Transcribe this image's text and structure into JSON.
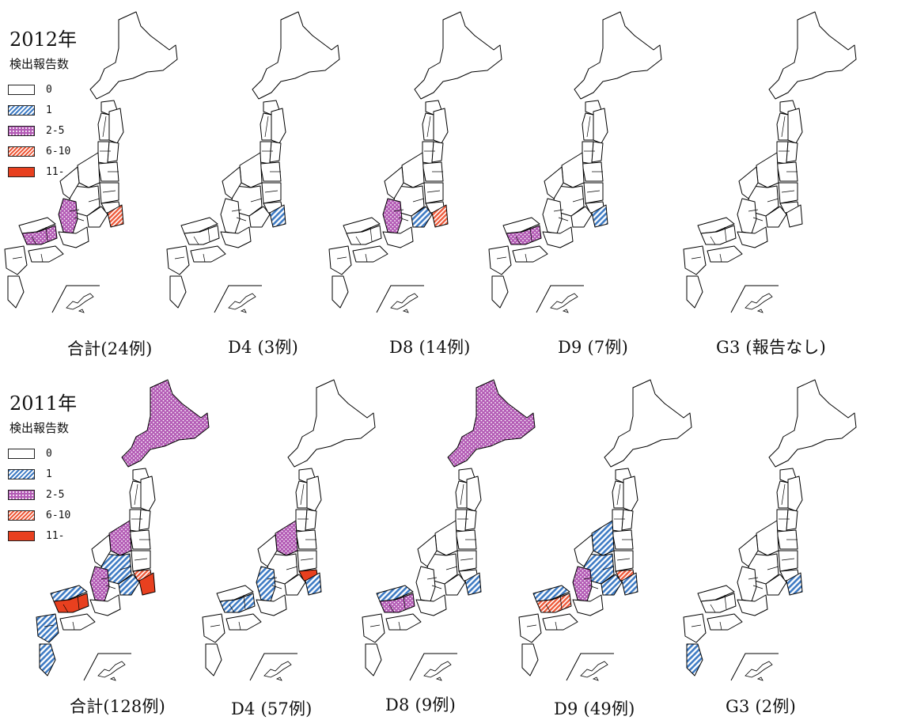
{
  "colors": {
    "c0": "#ffffff",
    "c1": "#3e7bc4",
    "c25": "#b35bb5",
    "c610": "#ee5a3a",
    "c11": "#e8401f",
    "outline": "#000000"
  },
  "legend_categories": [
    {
      "label": "0",
      "level": "c0",
      "pattern": "none"
    },
    {
      "label": "1",
      "level": "c1",
      "pattern": "diag-blue"
    },
    {
      "label": "2-5",
      "level": "c25",
      "pattern": "dots-purple"
    },
    {
      "label": "6-10",
      "level": "c610",
      "pattern": "diag-red"
    },
    {
      "label": "11-",
      "level": "c11",
      "pattern": "solid-red"
    }
  ],
  "rows": [
    {
      "year_label": "2012年",
      "legend_title": "検出報告数",
      "maps": [
        {
          "caption": "合計(24例)",
          "regions": {
            "osaka_area": "c25",
            "hiroshima": "c25",
            "kanagawa": "c610",
            "tokyo": "c0"
          }
        },
        {
          "caption": "D4 (3例)",
          "regions": {
            "kanagawa": "c1"
          }
        },
        {
          "caption": "D8  (14例)",
          "regions": {
            "osaka_area": "c25",
            "aichi": "c1",
            "kanagawa": "c610"
          }
        },
        {
          "caption": "D9 (7例)",
          "regions": {
            "hiroshima": "c25",
            "kanagawa": "c1"
          }
        },
        {
          "caption": "G3 (報告なし)",
          "regions": {}
        }
      ]
    },
    {
      "year_label": "2011年",
      "legend_title": "検出報告数",
      "maps": [
        {
          "caption": "合計(128例)",
          "regions": {
            "hokkaido": "c25",
            "niigata": "c25",
            "gifu_nagano": "c1",
            "aichi": "c1",
            "kanagawa": "c11",
            "tokyo": "c610",
            "osaka_area": "c25",
            "shimane": "c1",
            "hiroshima": "c11",
            "kyushu_north": "c1",
            "kagoshima": "c1"
          }
        },
        {
          "caption": "D4 (57例)",
          "regions": {
            "niigata": "c25",
            "tokyo": "c11",
            "kanagawa": "c1",
            "osaka_area": "c1",
            "hiroshima": "c1"
          }
        },
        {
          "caption": "D8  (9例)",
          "regions": {
            "hokkaido": "c25",
            "hiroshima": "c25",
            "shimane": "c1",
            "kanagawa": "c1"
          }
        },
        {
          "caption": "D9 (49例)",
          "regions": {
            "niigata": "c1",
            "gifu_nagano": "c1",
            "aichi": "c1",
            "tokyo": "c610",
            "kanagawa": "c1",
            "osaka_area": "c25",
            "shimane": "c1",
            "hiroshima": "c610"
          }
        },
        {
          "caption": "G3 (2例)",
          "regions": {
            "kanagawa": "c1",
            "kagoshima": "c1"
          }
        }
      ]
    }
  ]
}
